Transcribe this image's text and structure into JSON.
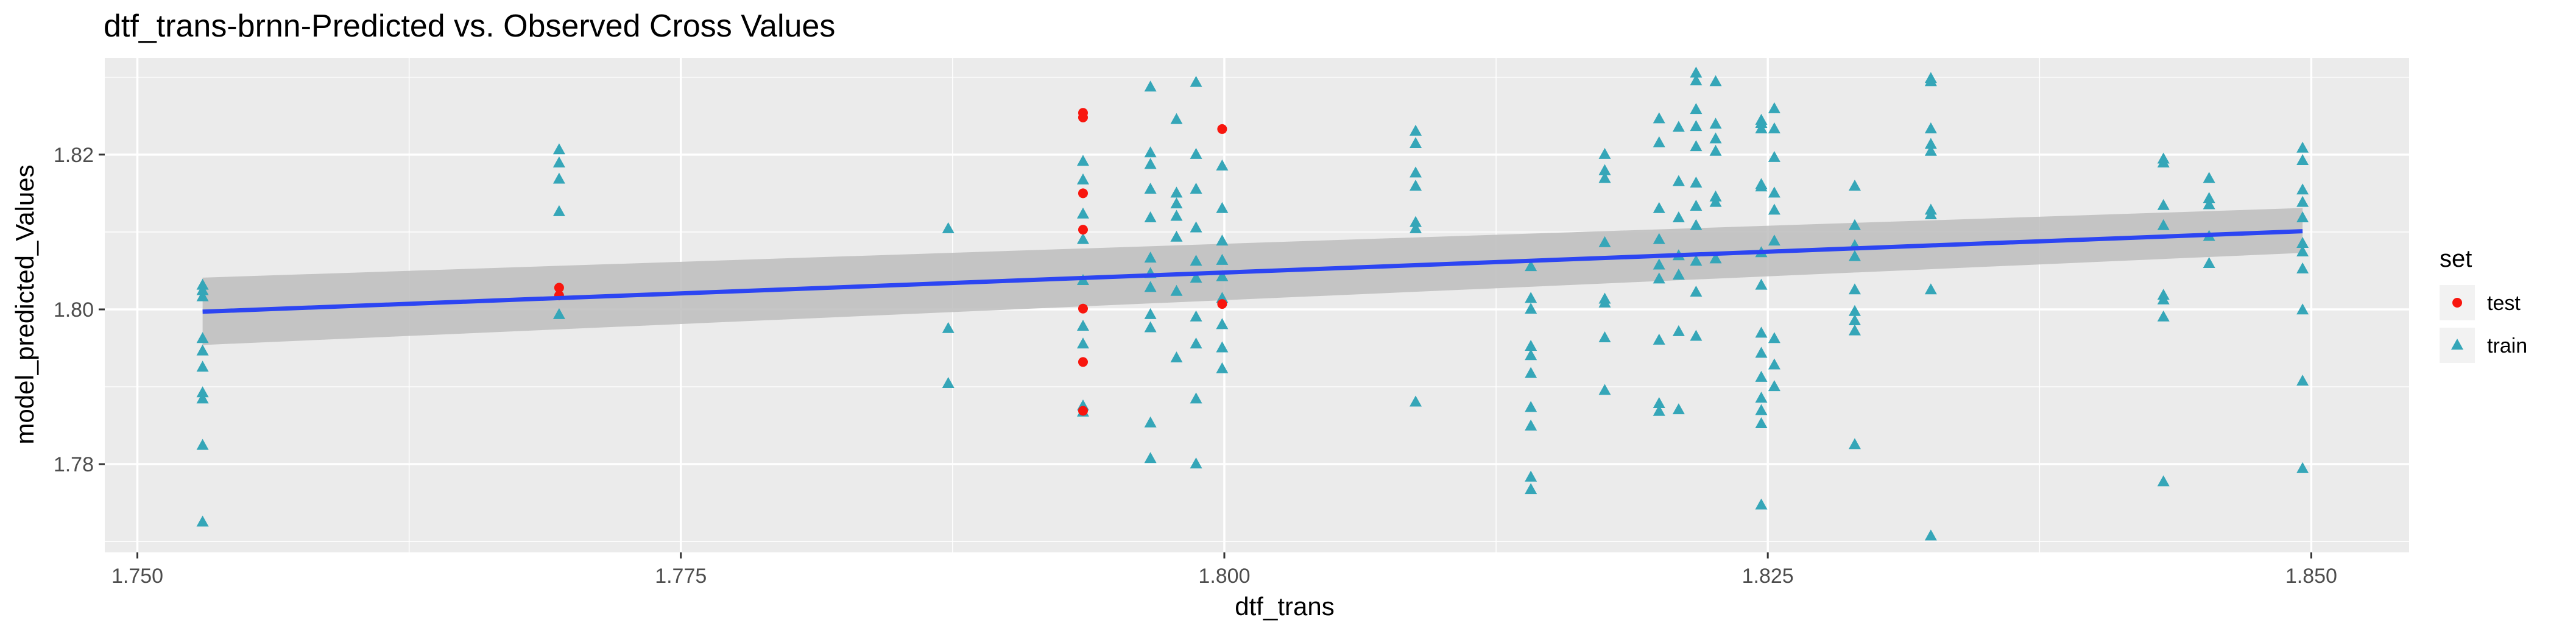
{
  "chart_data": {
    "type": "scatter",
    "title": "dtf_trans-brnn-Predicted vs. Observed Cross Values",
    "xlabel": "dtf_trans",
    "ylabel": "model_predicted_Values",
    "xlim": [
      1.7485,
      1.8545
    ],
    "ylim": [
      1.7686,
      1.8325
    ],
    "xticks": [
      1.75,
      1.775,
      1.8,
      1.825,
      1.85
    ],
    "xtick_labels": [
      "1.750",
      "1.775",
      "1.800",
      "1.825",
      "1.850"
    ],
    "yticks": [
      1.78,
      1.8,
      1.82
    ],
    "ytick_labels": [
      "1.78",
      "1.80",
      "1.82"
    ],
    "grid": true,
    "legend": {
      "title": "set",
      "position": "right",
      "entries": [
        "test",
        "train"
      ]
    },
    "colors": {
      "test": "#f8160e",
      "train": "#35a6b8",
      "fit": "#2c45f2",
      "ribbon": "#bdbdbd",
      "panel": "#ebebeb"
    },
    "series": [
      {
        "name": "test",
        "marker": "circle",
        "points": [
          [
            1.7694,
            1.8028
          ],
          [
            1.7694,
            1.8018
          ],
          [
            1.7935,
            1.8254
          ],
          [
            1.7935,
            1.8248
          ],
          [
            1.7935,
            1.815
          ],
          [
            1.7935,
            1.8103
          ],
          [
            1.7935,
            1.8001
          ],
          [
            1.7935,
            1.7932
          ],
          [
            1.7935,
            1.7869
          ],
          [
            1.7999,
            1.8233
          ],
          [
            1.7999,
            1.8007
          ]
        ]
      },
      {
        "name": "train",
        "marker": "triangle",
        "points": [
          [
            1.753,
            1.8031
          ],
          [
            1.753,
            1.8024
          ],
          [
            1.753,
            1.8016
          ],
          [
            1.753,
            1.7962
          ],
          [
            1.753,
            1.7946
          ],
          [
            1.753,
            1.7925
          ],
          [
            1.753,
            1.7892
          ],
          [
            1.753,
            1.7884
          ],
          [
            1.753,
            1.7824
          ],
          [
            1.753,
            1.7725
          ],
          [
            1.7694,
            1.8206
          ],
          [
            1.7694,
            1.8189
          ],
          [
            1.7694,
            1.8168
          ],
          [
            1.7694,
            1.8126
          ],
          [
            1.7694,
            1.7993
          ],
          [
            1.7873,
            1.8104
          ],
          [
            1.7873,
            1.7975
          ],
          [
            1.7873,
            1.7904
          ],
          [
            1.7935,
            1.8191
          ],
          [
            1.7935,
            1.8167
          ],
          [
            1.7935,
            1.8123
          ],
          [
            1.7935,
            1.809
          ],
          [
            1.7935,
            1.8037
          ],
          [
            1.7935,
            1.7978
          ],
          [
            1.7935,
            1.7955
          ],
          [
            1.7935,
            1.7875
          ],
          [
            1.7935,
            1.7867
          ],
          [
            1.7966,
            1.8287
          ],
          [
            1.7966,
            1.8202
          ],
          [
            1.7966,
            1.8187
          ],
          [
            1.7966,
            1.8155
          ],
          [
            1.7966,
            1.8118
          ],
          [
            1.7966,
            1.8066
          ],
          [
            1.7966,
            1.8046
          ],
          [
            1.7966,
            1.8028
          ],
          [
            1.7966,
            1.7993
          ],
          [
            1.7966,
            1.7976
          ],
          [
            1.7966,
            1.7853
          ],
          [
            1.7966,
            1.7807
          ],
          [
            1.7978,
            1.8245
          ],
          [
            1.7978,
            1.815
          ],
          [
            1.7978,
            1.8136
          ],
          [
            1.7978,
            1.812
          ],
          [
            1.7978,
            1.8093
          ],
          [
            1.7978,
            1.8023
          ],
          [
            1.7978,
            1.7937
          ],
          [
            1.7987,
            1.8293
          ],
          [
            1.7987,
            1.82
          ],
          [
            1.7987,
            1.8155
          ],
          [
            1.7987,
            1.8105
          ],
          [
            1.7987,
            1.8062
          ],
          [
            1.7987,
            1.804
          ],
          [
            1.7987,
            1.799
          ],
          [
            1.7987,
            1.7955
          ],
          [
            1.7987,
            1.7884
          ],
          [
            1.7987,
            1.78
          ],
          [
            1.7999,
            1.8185
          ],
          [
            1.7999,
            1.813
          ],
          [
            1.7999,
            1.8088
          ],
          [
            1.7999,
            1.8063
          ],
          [
            1.7999,
            1.8042
          ],
          [
            1.7999,
            1.8014
          ],
          [
            1.7999,
            1.798
          ],
          [
            1.7999,
            1.795
          ],
          [
            1.7999,
            1.7923
          ],
          [
            1.8088,
            1.823
          ],
          [
            1.8088,
            1.8214
          ],
          [
            1.8088,
            1.8176
          ],
          [
            1.8088,
            1.8159
          ],
          [
            1.8088,
            1.8112
          ],
          [
            1.8088,
            1.8104
          ],
          [
            1.8088,
            1.788
          ],
          [
            1.8141,
            1.8055
          ],
          [
            1.8141,
            1.8014
          ],
          [
            1.8141,
            1.8
          ],
          [
            1.8141,
            1.7952
          ],
          [
            1.8141,
            1.794
          ],
          [
            1.8141,
            1.7917
          ],
          [
            1.8141,
            1.7873
          ],
          [
            1.8141,
            1.7849
          ],
          [
            1.8141,
            1.7783
          ],
          [
            1.8141,
            1.7767
          ],
          [
            1.8175,
            1.82
          ],
          [
            1.8175,
            1.8179
          ],
          [
            1.8175,
            1.8169
          ],
          [
            1.8175,
            1.8086
          ],
          [
            1.8175,
            1.8013
          ],
          [
            1.8175,
            1.8008
          ],
          [
            1.8175,
            1.7963
          ],
          [
            1.8175,
            1.7895
          ],
          [
            1.82,
            1.8246
          ],
          [
            1.82,
            1.8215
          ],
          [
            1.82,
            1.813
          ],
          [
            1.82,
            1.809
          ],
          [
            1.82,
            1.8057
          ],
          [
            1.82,
            1.8039
          ],
          [
            1.82,
            1.796
          ],
          [
            1.82,
            1.7878
          ],
          [
            1.82,
            1.7868
          ],
          [
            1.8209,
            1.8235
          ],
          [
            1.8209,
            1.8165
          ],
          [
            1.8209,
            1.8118
          ],
          [
            1.8209,
            1.8069
          ],
          [
            1.8209,
            1.8044
          ],
          [
            1.8209,
            1.7971
          ],
          [
            1.8209,
            1.787
          ],
          [
            1.8217,
            1.8305
          ],
          [
            1.8217,
            1.8295
          ],
          [
            1.8217,
            1.8258
          ],
          [
            1.8217,
            1.8236
          ],
          [
            1.8217,
            1.821
          ],
          [
            1.8217,
            1.8163
          ],
          [
            1.8217,
            1.8133
          ],
          [
            1.8217,
            1.8108
          ],
          [
            1.8217,
            1.8062
          ],
          [
            1.8217,
            1.8022
          ],
          [
            1.8217,
            1.7965
          ],
          [
            1.8226,
            1.8294
          ],
          [
            1.8226,
            1.8239
          ],
          [
            1.8226,
            1.822
          ],
          [
            1.8226,
            1.8204
          ],
          [
            1.8226,
            1.8145
          ],
          [
            1.8226,
            1.8138
          ],
          [
            1.8226,
            1.8065
          ],
          [
            1.8247,
            1.8244
          ],
          [
            1.8247,
            1.824
          ],
          [
            1.8247,
            1.8233
          ],
          [
            1.8247,
            1.8161
          ],
          [
            1.8247,
            1.8158
          ],
          [
            1.8247,
            1.8073
          ],
          [
            1.8247,
            1.8031
          ],
          [
            1.8247,
            1.7969
          ],
          [
            1.8247,
            1.7943
          ],
          [
            1.8247,
            1.7912
          ],
          [
            1.8247,
            1.7885
          ],
          [
            1.8247,
            1.7869
          ],
          [
            1.8247,
            1.7852
          ],
          [
            1.8247,
            1.7747
          ],
          [
            1.8253,
            1.8259
          ],
          [
            1.8253,
            1.8233
          ],
          [
            1.8253,
            1.8196
          ],
          [
            1.8253,
            1.815
          ],
          [
            1.8253,
            1.8128
          ],
          [
            1.8253,
            1.8088
          ],
          [
            1.8253,
            1.7962
          ],
          [
            1.8253,
            1.7928
          ],
          [
            1.8253,
            1.79
          ],
          [
            1.829,
            1.8159
          ],
          [
            1.829,
            1.8108
          ],
          [
            1.829,
            1.8082
          ],
          [
            1.829,
            1.8068
          ],
          [
            1.829,
            1.8025
          ],
          [
            1.829,
            1.7997
          ],
          [
            1.829,
            1.7985
          ],
          [
            1.829,
            1.7972
          ],
          [
            1.829,
            1.7825
          ],
          [
            1.8325,
            1.8298
          ],
          [
            1.8325,
            1.8294
          ],
          [
            1.8325,
            1.8233
          ],
          [
            1.8325,
            1.8213
          ],
          [
            1.8325,
            1.8204
          ],
          [
            1.8325,
            1.8128
          ],
          [
            1.8325,
            1.8122
          ],
          [
            1.8325,
            1.8025
          ],
          [
            1.8325,
            1.7707
          ],
          [
            1.8432,
            1.8194
          ],
          [
            1.8432,
            1.8189
          ],
          [
            1.8432,
            1.8134
          ],
          [
            1.8432,
            1.8108
          ],
          [
            1.8432,
            1.8018
          ],
          [
            1.8432,
            1.8012
          ],
          [
            1.8432,
            1.799
          ],
          [
            1.8432,
            1.7777
          ],
          [
            1.8453,
            1.8169
          ],
          [
            1.8453,
            1.8143
          ],
          [
            1.8453,
            1.8135
          ],
          [
            1.8453,
            1.8094
          ],
          [
            1.8453,
            1.8059
          ],
          [
            1.8496,
            1.8208
          ],
          [
            1.8496,
            1.8192
          ],
          [
            1.8496,
            1.8154
          ],
          [
            1.8496,
            1.8138
          ],
          [
            1.8496,
            1.8118
          ],
          [
            1.8496,
            1.8085
          ],
          [
            1.8496,
            1.8074
          ],
          [
            1.8496,
            1.8052
          ],
          [
            1.8496,
            1.7999
          ],
          [
            1.8496,
            1.7907
          ],
          [
            1.8496,
            1.7794
          ]
        ]
      }
    ],
    "fit": {
      "x": [
        1.753,
        1.8496
      ],
      "y": [
        1.7997,
        1.8101
      ],
      "ribbon_lower": [
        1.7954,
        1.8073
      ],
      "ribbon_upper": [
        1.8041,
        1.8131
      ]
    }
  }
}
